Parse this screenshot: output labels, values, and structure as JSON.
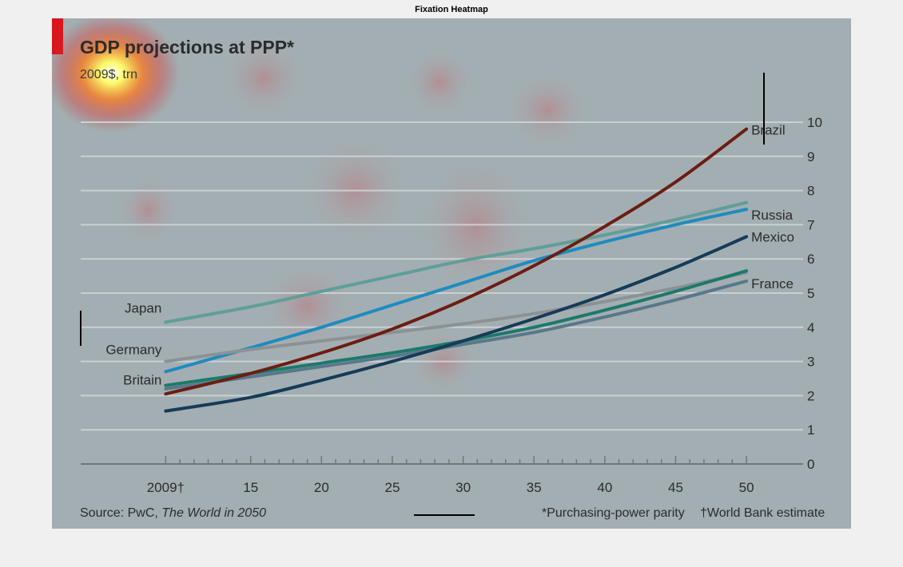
{
  "window": {
    "title": "Fixation Heatmap"
  },
  "colors": {
    "background": "#a3aeb2",
    "gridline": "#c9d0d3",
    "axis": "#6e777b",
    "text": "#2b2b2b",
    "accent_red": "#d8161c"
  },
  "chart_data": {
    "type": "line",
    "title": "GDP projections at PPP*",
    "subtitle": "2009$, trn",
    "x_ticks": [
      {
        "value": 2009,
        "label": "2009†"
      },
      {
        "value": 2015,
        "label": "15"
      },
      {
        "value": 2020,
        "label": "20"
      },
      {
        "value": 2025,
        "label": "25"
      },
      {
        "value": 2030,
        "label": "30"
      },
      {
        "value": 2035,
        "label": "35"
      },
      {
        "value": 2040,
        "label": "40"
      },
      {
        "value": 2045,
        "label": "45"
      },
      {
        "value": 2050,
        "label": "50"
      }
    ],
    "xlim": [
      2003,
      2054
    ],
    "ylim": [
      0,
      10
    ],
    "y_ticks": [
      0,
      1,
      2,
      3,
      4,
      5,
      6,
      7,
      8,
      9,
      10
    ],
    "grid": true,
    "series": [
      {
        "name": "Japan",
        "color": "#5f9e9a",
        "label_side": "left",
        "x": [
          2009,
          2015,
          2020,
          2025,
          2030,
          2035,
          2040,
          2045,
          2050
        ],
        "y": [
          4.15,
          4.6,
          5.05,
          5.5,
          5.95,
          6.3,
          6.7,
          7.15,
          7.65
        ]
      },
      {
        "name": "Russia",
        "color": "#1f8bbf",
        "label_side": "right",
        "x": [
          2009,
          2015,
          2020,
          2025,
          2030,
          2035,
          2040,
          2045,
          2050
        ],
        "y": [
          2.7,
          3.4,
          4.0,
          4.65,
          5.3,
          5.95,
          6.5,
          7.0,
          7.45
        ]
      },
      {
        "name": "Germany",
        "color": "#8c9195",
        "label_side": "left",
        "x": [
          2009,
          2015,
          2020,
          2025,
          2030,
          2035,
          2040,
          2045,
          2050
        ],
        "y": [
          3.0,
          3.35,
          3.6,
          3.85,
          4.1,
          4.4,
          4.75,
          5.15,
          5.6
        ]
      },
      {
        "name": "France",
        "color": "#58788a",
        "label_side": "right",
        "x": [
          2009,
          2015,
          2020,
          2025,
          2030,
          2035,
          2040,
          2045,
          2050
        ],
        "y": [
          2.2,
          2.55,
          2.85,
          3.15,
          3.5,
          3.85,
          4.3,
          4.8,
          5.35
        ]
      },
      {
        "name": "Britain",
        "color": "#1b7a6a",
        "label_side": "left",
        "x": [
          2009,
          2015,
          2020,
          2025,
          2030,
          2035,
          2040,
          2045,
          2050
        ],
        "y": [
          2.3,
          2.65,
          2.95,
          3.25,
          3.6,
          4.0,
          4.5,
          5.05,
          5.65
        ]
      },
      {
        "name": "Mexico",
        "color": "#163b57",
        "label_side": "right",
        "x": [
          2009,
          2015,
          2020,
          2025,
          2030,
          2035,
          2040,
          2045,
          2050
        ],
        "y": [
          1.55,
          1.95,
          2.45,
          3.0,
          3.6,
          4.25,
          4.95,
          5.75,
          6.65
        ]
      },
      {
        "name": "Brazil",
        "color": "#6b1d12",
        "label_side": "right",
        "x": [
          2009,
          2015,
          2020,
          2025,
          2030,
          2035,
          2040,
          2045,
          2050
        ],
        "y": [
          2.05,
          2.65,
          3.25,
          3.95,
          4.8,
          5.8,
          6.95,
          8.25,
          9.8
        ]
      }
    ],
    "source": "Source: PwC,",
    "source_title": "The World in 2050",
    "footnote_ppp": "*Purchasing-power parity",
    "footnote_wb": "†World Bank estimate"
  }
}
